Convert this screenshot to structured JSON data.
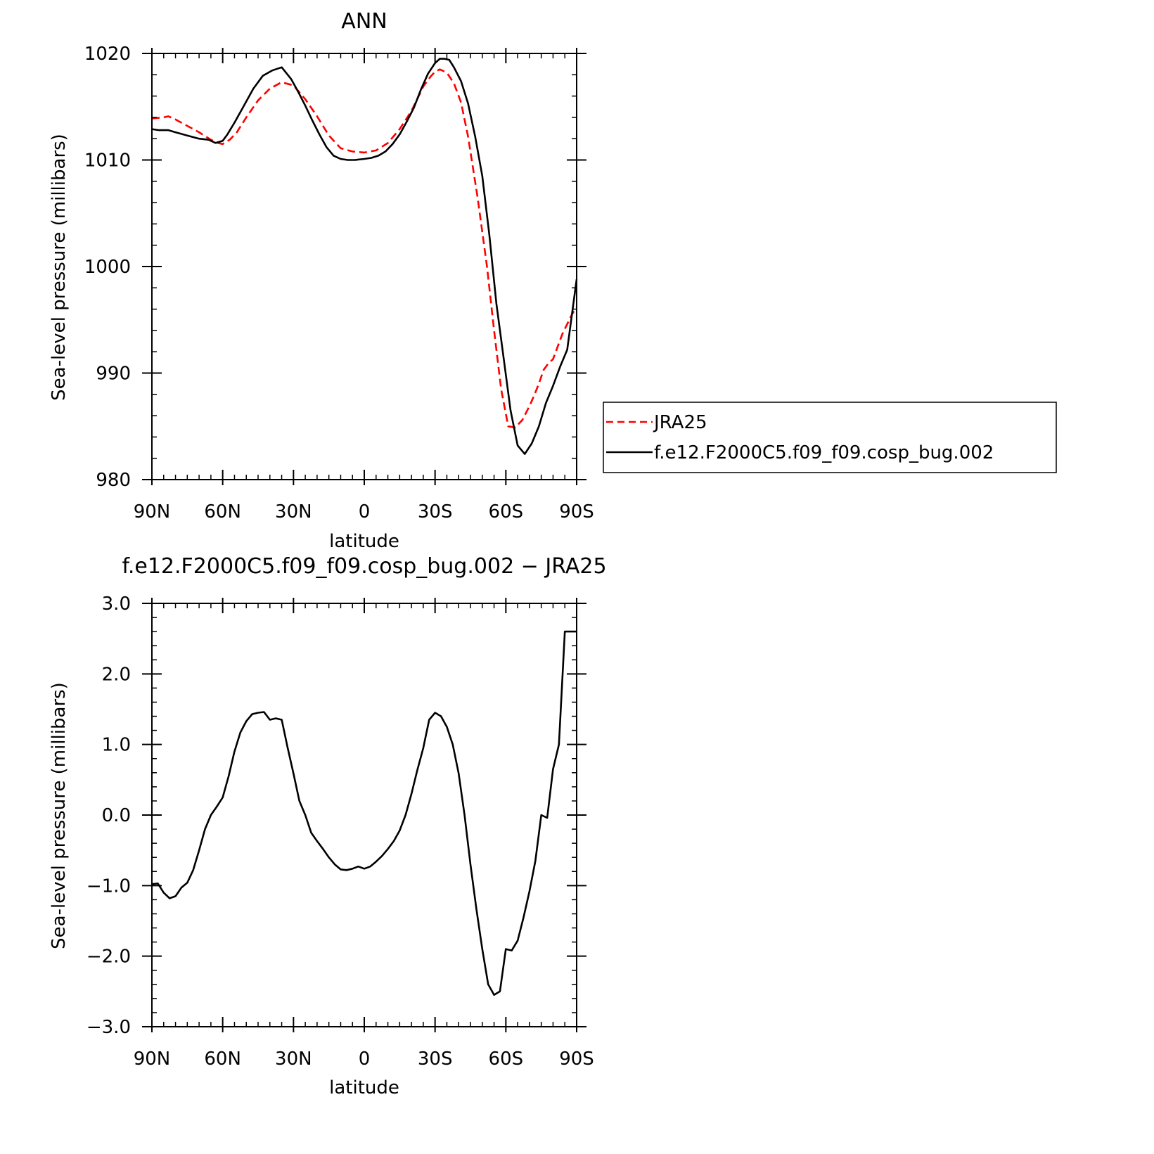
{
  "chart_data": [
    {
      "type": "line",
      "title": "ANN",
      "xlabel": "latitude",
      "ylabel": "Sea-level pressure (millibars)",
      "x_ticks": [
        -90,
        -60,
        -30,
        0,
        30,
        60,
        90
      ],
      "x_tick_labels": [
        "90N",
        "60N",
        "30N",
        "0",
        "30S",
        "60S",
        "90S"
      ],
      "y_ticks": [
        980,
        990,
        1000,
        1010,
        1020
      ],
      "y_tick_labels": [
        "980",
        "990",
        "1000",
        "1010",
        "1020"
      ],
      "xlim": [
        -90,
        90
      ],
      "ylim": [
        980,
        1020
      ],
      "legend_position": "right",
      "series": [
        {
          "name": "JRA25",
          "color": "#ff0000",
          "style": "dashed",
          "x": [
            -90,
            -85,
            -83,
            -80,
            -75,
            -70,
            -65,
            -62,
            -60,
            -57,
            -54,
            -50,
            -45,
            -40,
            -35,
            -30,
            -25,
            -20,
            -15,
            -10,
            -5,
            0,
            5,
            10,
            15,
            20,
            25,
            28,
            30,
            32,
            35,
            38,
            41,
            44,
            48,
            52,
            55,
            58,
            61,
            64,
            67,
            70,
            72,
            74,
            76,
            78,
            80,
            84,
            88,
            90
          ],
          "values": [
            1013.9,
            1014.0,
            1014.1,
            1013.8,
            1013.2,
            1012.6,
            1011.9,
            1011.6,
            1011.5,
            1011.9,
            1012.6,
            1014.0,
            1015.6,
            1016.7,
            1017.3,
            1017.0,
            1015.7,
            1014.1,
            1012.3,
            1011.1,
            1010.8,
            1010.7,
            1010.9,
            1011.6,
            1012.9,
            1014.6,
            1016.9,
            1017.8,
            1018.3,
            1018.5,
            1018.2,
            1017.2,
            1015.4,
            1012.2,
            1006.5,
            1000.0,
            994.0,
            988.5,
            985.0,
            984.9,
            985.6,
            986.9,
            987.9,
            989.0,
            990.3,
            990.9,
            991.3,
            993.7,
            995.5,
            996.2
          ]
        },
        {
          "name": "f.e12.F2000C5.f09_f09.cosp_bug.002",
          "color": "#000000",
          "style": "solid",
          "x": [
            -90,
            -87,
            -83,
            -80,
            -75,
            -70,
            -66,
            -63,
            -60,
            -58,
            -55,
            -51,
            -47,
            -43,
            -39,
            -35,
            -31,
            -28,
            -25,
            -22,
            -19,
            -16,
            -13,
            -10,
            -7,
            -4,
            0,
            3,
            6,
            9,
            12,
            15,
            18,
            21,
            24,
            27,
            30,
            32,
            34,
            36,
            38,
            41,
            44,
            47,
            50,
            53,
            56,
            59,
            62,
            65,
            68,
            71,
            74,
            77,
            80,
            83,
            86,
            90
          ],
          "values": [
            1012.9,
            1012.8,
            1012.8,
            1012.6,
            1012.3,
            1012.0,
            1011.9,
            1011.6,
            1011.8,
            1012.4,
            1013.5,
            1015.1,
            1016.7,
            1017.9,
            1018.4,
            1018.7,
            1017.6,
            1016.4,
            1015.1,
            1013.7,
            1012.4,
            1011.2,
            1010.4,
            1010.1,
            1010.0,
            1010.0,
            1010.1,
            1010.2,
            1010.4,
            1010.8,
            1011.5,
            1012.4,
            1013.6,
            1014.9,
            1016.6,
            1018.1,
            1019.1,
            1019.5,
            1019.5,
            1019.4,
            1018.7,
            1017.4,
            1015.3,
            1012.2,
            1008.5,
            1003.0,
            996.5,
            991.5,
            986.5,
            983.2,
            982.4,
            983.4,
            985.0,
            987.2,
            988.8,
            990.6,
            992.2,
            998.8
          ]
        }
      ]
    },
    {
      "type": "line",
      "title": "f.e12.F2000C5.f09_f09.cosp_bug.002 − JRA25",
      "xlabel": "latitude",
      "ylabel": "Sea-level pressure (millibars)",
      "x_ticks": [
        -90,
        -60,
        -30,
        0,
        30,
        60,
        90
      ],
      "x_tick_labels": [
        "90N",
        "60N",
        "30N",
        "0",
        "30S",
        "60S",
        "90S"
      ],
      "y_ticks": [
        -3,
        -2,
        -1,
        0,
        1,
        2,
        3
      ],
      "y_tick_labels": [
        "−3.0",
        "−2.0",
        "−1.0",
        "0.0",
        "1.0",
        "2.0",
        "3.0"
      ],
      "xlim": [
        -90,
        90
      ],
      "ylim": [
        -3,
        3
      ],
      "series": [
        {
          "color": "#000000",
          "style": "solid",
          "x": [
            -90,
            -87.5,
            -85,
            -82.5,
            -80,
            -77.5,
            -75,
            -72.5,
            -70,
            -67.5,
            -65,
            -62.5,
            -60,
            -57.5,
            -55,
            -52.5,
            -50,
            -47.5,
            -45,
            -42.5,
            -40,
            -37.5,
            -35,
            -32.5,
            -30,
            -27.5,
            -25,
            -22.5,
            -20,
            -17.5,
            -15,
            -12.5,
            -10,
            -7.5,
            -5,
            -2.5,
            0,
            2.5,
            5,
            7.5,
            10,
            12.5,
            15,
            17.5,
            20,
            22.5,
            25,
            27.5,
            30,
            32.5,
            35,
            37.5,
            40,
            42.5,
            45,
            47.5,
            50,
            52.5,
            55,
            57.5,
            60,
            62.5,
            65,
            67.5,
            70,
            72.5,
            75,
            77.5,
            80,
            82.5,
            85,
            87.5,
            90
          ],
          "values": [
            -0.98,
            -0.97,
            -1.1,
            -1.18,
            -1.15,
            -1.03,
            -0.96,
            -0.78,
            -0.5,
            -0.2,
            0.0,
            0.12,
            0.25,
            0.55,
            0.9,
            1.17,
            1.33,
            1.43,
            1.45,
            1.46,
            1.35,
            1.37,
            1.35,
            0.96,
            0.59,
            0.2,
            0.0,
            -0.25,
            -0.37,
            -0.48,
            -0.6,
            -0.7,
            -0.77,
            -0.78,
            -0.76,
            -0.73,
            -0.76,
            -0.73,
            -0.66,
            -0.58,
            -0.48,
            -0.37,
            -0.22,
            0.0,
            0.3,
            0.64,
            0.95,
            1.35,
            1.45,
            1.4,
            1.25,
            1.0,
            0.59,
            0.0,
            -0.7,
            -1.33,
            -1.9,
            -2.4,
            -2.55,
            -2.5,
            -1.9,
            -1.92,
            -1.78,
            -1.45,
            -1.08,
            -0.65,
            0.0,
            -0.04,
            0.65,
            1.0,
            2.6,
            2.6,
            2.6
          ]
        }
      ]
    }
  ]
}
